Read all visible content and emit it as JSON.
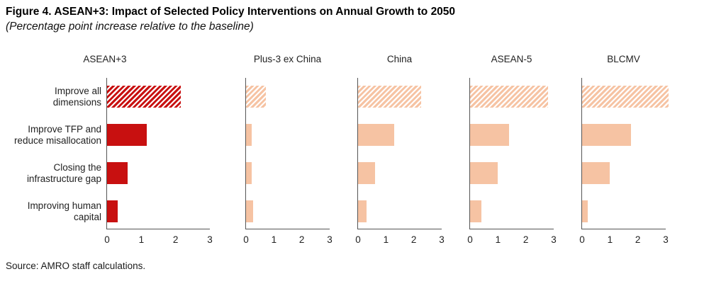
{
  "header": {
    "title": "Figure 4. ASEAN+3: Impact of Selected Policy Interventions on Annual Growth to 2050",
    "subtitle": "(Percentage point increase relative to the baseline)"
  },
  "source": "Source: AMRO staff calculations.",
  "colors": {
    "dark_red": "#C81010",
    "light_peach": "#F6C3A3",
    "axis": "#555555",
    "background": "#FFFFFF"
  },
  "chart_data": {
    "type": "bar",
    "orientation": "horizontal",
    "title": "Figure 4. ASEAN+3: Impact of Selected Policy Interventions on Annual Growth to 2050",
    "subtitle": "(Percentage point increase relative to the baseline)",
    "categories": [
      "Improve all dimensions",
      "Improve TFP and reduce misallocation",
      "Closing the infrastructure gap",
      "Improving human capital"
    ],
    "category_lines": [
      [
        "Improve all",
        "dimensions"
      ],
      [
        "Improve TFP and",
        "reduce misallocation"
      ],
      [
        "Closing the",
        "infrastructure gap"
      ],
      [
        "Improving human",
        "capital"
      ]
    ],
    "hatched_category": "Improve all dimensions",
    "hatched_category_index": 0,
    "xlim": [
      0,
      3
    ],
    "xticks": [
      "0",
      "1",
      "2",
      "3"
    ],
    "grid": false,
    "legend": false,
    "panels": [
      {
        "name": "ASEAN+3",
        "color_style": "dark",
        "values": [
          2.15,
          1.15,
          0.6,
          0.3
        ]
      },
      {
        "name": "Plus-3 ex China",
        "color_style": "light",
        "values": [
          0.7,
          0.2,
          0.2,
          0.25
        ]
      },
      {
        "name": "China",
        "color_style": "light",
        "values": [
          2.25,
          1.3,
          0.6,
          0.3
        ]
      },
      {
        "name": "ASEAN-5",
        "color_style": "light",
        "values": [
          2.8,
          1.4,
          1.0,
          0.4
        ]
      },
      {
        "name": "BLCMV",
        "color_style": "light",
        "values": [
          3.1,
          1.75,
          1.0,
          0.2
        ]
      }
    ]
  }
}
